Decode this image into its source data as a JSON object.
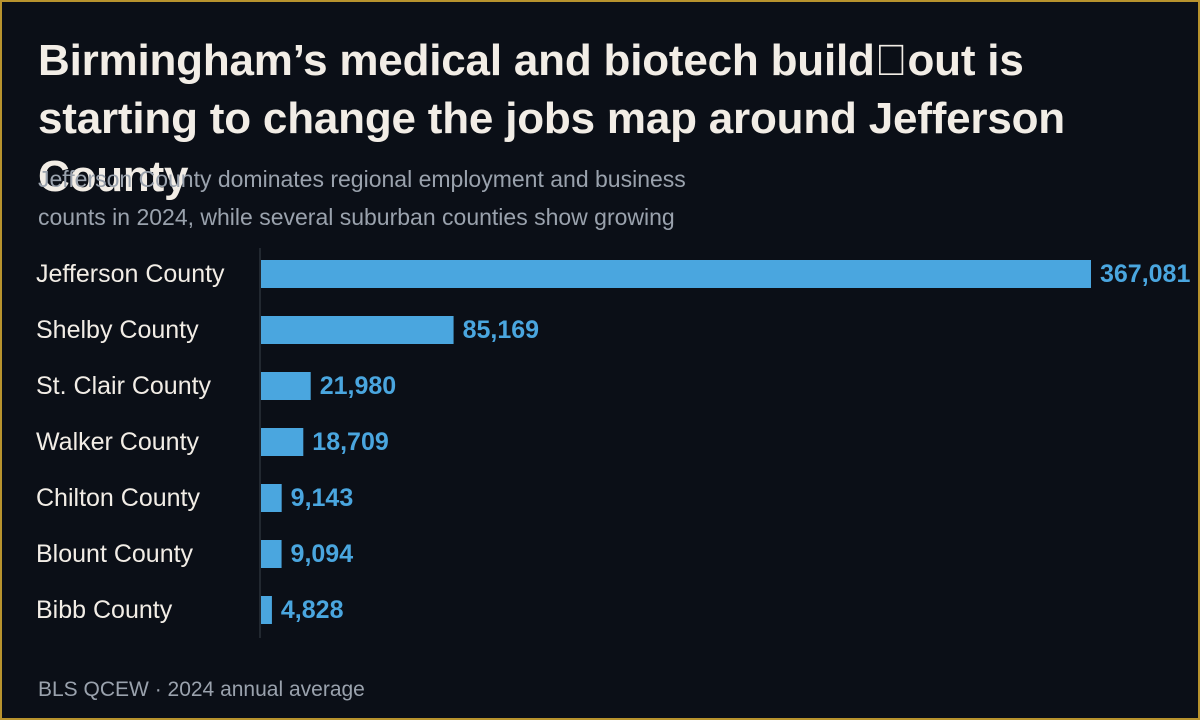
{
  "header": {
    "title": "Birmingham’s medical and biotech build\u0000out is starting to change the jobs map around Jefferson County",
    "subtitle": "Jefferson County dominates regional employment and business counts in 2024, while several suburban counties show growing"
  },
  "footer": {
    "source": "BLS QCEW · 2024 annual average"
  },
  "colors": {
    "background": "#0b0f17",
    "border": "#b8932e",
    "bar": "#4aa6df",
    "value_label": "#4aa6df",
    "category_label": "#f2ede6",
    "baseline": "#3a404a"
  },
  "chart_data": {
    "type": "bar",
    "orientation": "horizontal",
    "categories": [
      "Jefferson County",
      "Shelby County",
      "St. Clair County",
      "Walker County",
      "Chilton County",
      "Blount County",
      "Bibb County"
    ],
    "values": [
      367081,
      85169,
      21980,
      18709,
      9143,
      9094,
      4828
    ],
    "value_labels": [
      "367,081",
      "85,169",
      "21,980",
      "18,709",
      "9,143",
      "9,094",
      "4,828"
    ],
    "xlim": [
      0,
      367081
    ],
    "title": "",
    "xlabel": "",
    "ylabel": "",
    "grid": false,
    "legend": "none"
  }
}
